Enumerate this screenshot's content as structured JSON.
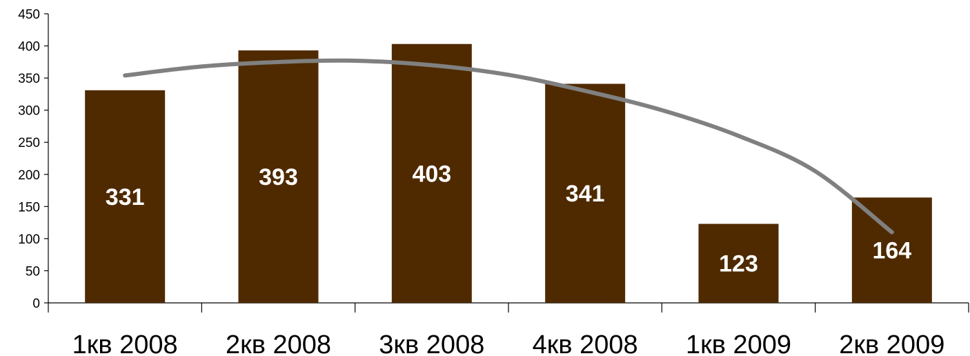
{
  "chart_data": {
    "type": "bar",
    "categories": [
      "1кв 2008",
      "2кв 2008",
      "3кв 2008",
      "4кв 2008",
      "1кв 2009",
      "2кв 2009"
    ],
    "values": [
      331,
      393,
      403,
      341,
      123,
      164
    ],
    "data_labels": [
      "331",
      "393",
      "403",
      "341",
      "123",
      "164"
    ],
    "ylim": [
      0,
      450
    ],
    "yticks": [
      0,
      50,
      100,
      150,
      200,
      250,
      300,
      350,
      400,
      450
    ],
    "trendline": {
      "type": "polynomial",
      "x": [
        0,
        0.5,
        1,
        1.5,
        2,
        2.5,
        3,
        3.5,
        4,
        4.5,
        5
      ],
      "y": [
        354,
        368,
        375,
        377,
        370,
        355,
        330,
        300,
        260,
        205,
        110
      ]
    },
    "grid": false,
    "legend": "none",
    "colors": {
      "bar": "#4f2a00",
      "trendline": "#808080",
      "data_label": "#ffffff"
    }
  }
}
